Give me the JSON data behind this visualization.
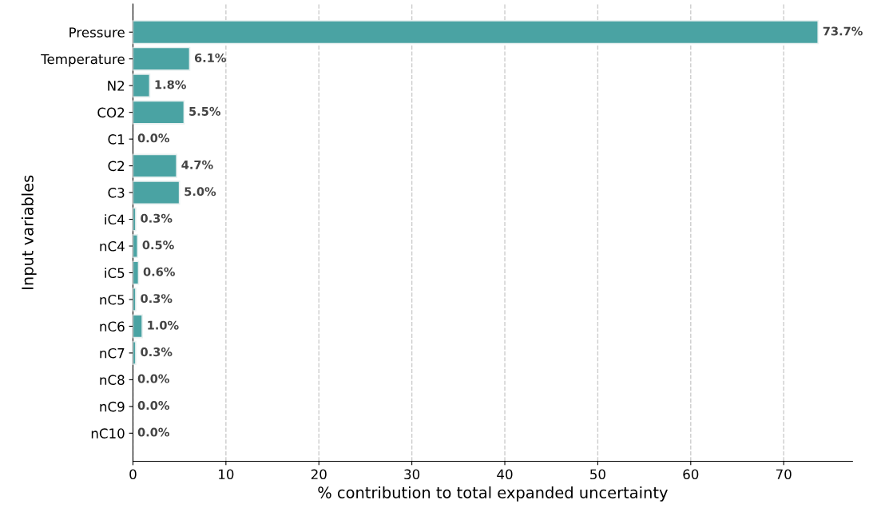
{
  "chart_data": {
    "type": "bar",
    "orientation": "horizontal",
    "xlabel": "% contribution to total expanded uncertainty",
    "ylabel": "Input variables",
    "categories": [
      "Pressure",
      "Temperature",
      "N2",
      "CO2",
      "C1",
      "C2",
      "C3",
      "iC4",
      "nC4",
      "iC5",
      "nC5",
      "nC6",
      "nC7",
      "nC8",
      "nC9",
      "nC10"
    ],
    "values": [
      73.7,
      6.1,
      1.8,
      5.5,
      0.0,
      4.7,
      5.0,
      0.3,
      0.5,
      0.6,
      0.3,
      1.0,
      0.3,
      0.0,
      0.0,
      0.0
    ],
    "value_labels": [
      "73.7%",
      "6.1%",
      "1.8%",
      "5.5%",
      "0.0%",
      "4.7%",
      "5.0%",
      "0.3%",
      "0.5%",
      "0.6%",
      "0.3%",
      "1.0%",
      "0.3%",
      "0.0%",
      "0.0%",
      "0.0%"
    ],
    "color": "#4aa3a3",
    "xlim": [
      0,
      77.4
    ],
    "xticks": [
      0,
      10,
      20,
      30,
      40,
      50,
      60,
      70
    ],
    "grid": "x",
    "line_style": "dashed"
  }
}
